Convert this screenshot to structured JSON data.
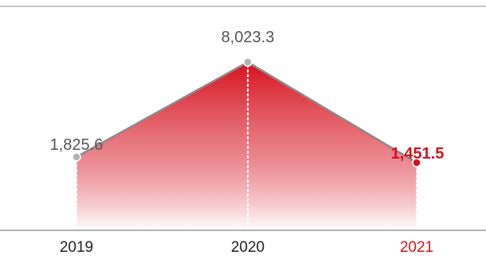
{
  "chart_data": {
    "type": "area",
    "categories": [
      "2019",
      "2020",
      "2021"
    ],
    "values": [
      1825.6,
      8023.3,
      1451.5
    ],
    "value_labels": [
      "1,825.6",
      "8,023.3",
      "1,451.5"
    ],
    "highlight_index": 2,
    "ylim": [
      0,
      8500
    ],
    "grid": false,
    "legend": "none"
  },
  "colors": {
    "line": "#8a8a8a",
    "marker": "#b3b3b3",
    "highlight": "#d5121e",
    "fill_top": "#d5121e",
    "fill_bottom": "#ffffff",
    "rule": "#c8c8c8",
    "label": "#555555",
    "tick": "#222222"
  }
}
